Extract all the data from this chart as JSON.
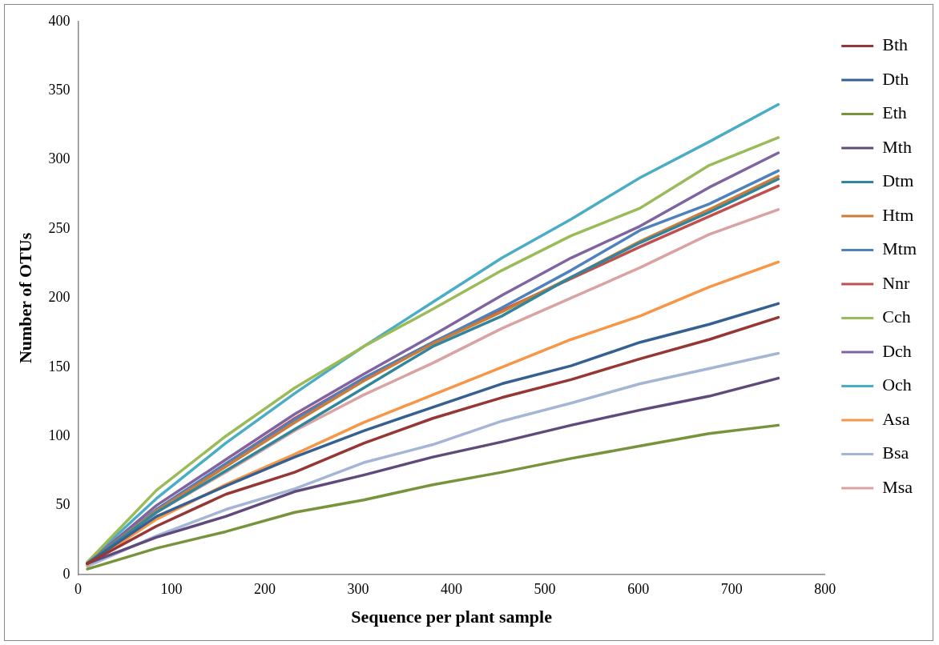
{
  "chart_data": {
    "type": "line",
    "xlabel": "Sequence per plant sample",
    "ylabel": "Number of OTUs",
    "x": [
      10,
      84,
      158,
      232,
      306,
      380,
      454,
      528,
      602,
      676,
      750
    ],
    "xlim": [
      0,
      800
    ],
    "xticks": [
      0,
      100,
      200,
      300,
      400,
      500,
      600,
      700,
      800
    ],
    "ylim": [
      0,
      400
    ],
    "yticks": [
      0,
      50,
      100,
      150,
      200,
      250,
      300,
      350,
      400
    ],
    "grid": false,
    "legend": "right",
    "marker": "none",
    "line_style": "solid",
    "series": [
      {
        "name": "Bth",
        "color": "#953735",
        "values": [
          8,
          35,
          58,
          74,
          95,
          113,
          128,
          141,
          156,
          170,
          186
        ]
      },
      {
        "name": "Dth",
        "color": "#376092",
        "values": [
          8,
          42,
          64,
          85,
          104,
          121,
          138,
          151,
          168,
          181,
          196
        ]
      },
      {
        "name": "Eth",
        "color": "#77933c",
        "values": [
          4,
          19,
          31,
          45,
          54,
          65,
          74,
          84,
          93,
          102,
          108
        ]
      },
      {
        "name": "Mth",
        "color": "#604a7b",
        "values": [
          8,
          27,
          42,
          60,
          72,
          85,
          96,
          108,
          119,
          129,
          142
        ]
      },
      {
        "name": "Dtm",
        "color": "#31859c",
        "values": [
          8,
          45,
          75,
          105,
          135,
          165,
          187,
          215,
          240,
          262,
          286
        ]
      },
      {
        "name": "Htm",
        "color": "#cd7b38",
        "values": [
          8,
          46,
          78,
          110,
          140,
          167,
          190,
          215,
          241,
          264,
          288
        ]
      },
      {
        "name": "Mtm",
        "color": "#4f81bd",
        "values": [
          8,
          47,
          80,
          112,
          142,
          168,
          193,
          220,
          249,
          268,
          292
        ]
      },
      {
        "name": "Nnr",
        "color": "#c0504d",
        "values": [
          8,
          47,
          80,
          113,
          142,
          168,
          191,
          214,
          237,
          259,
          281
        ]
      },
      {
        "name": "Cch",
        "color": "#9bbb59",
        "values": [
          9,
          61,
          100,
          135,
          165,
          192,
          220,
          245,
          265,
          296,
          316
        ]
      },
      {
        "name": "Dch",
        "color": "#8064a2",
        "values": [
          8,
          50,
          83,
          116,
          145,
          173,
          202,
          229,
          252,
          280,
          305
        ]
      },
      {
        "name": "Och",
        "color": "#4bacc6",
        "values": [
          9,
          55,
          95,
          131,
          165,
          197,
          229,
          257,
          287,
          313,
          340
        ]
      },
      {
        "name": "Asa",
        "color": "#f79646",
        "values": [
          7,
          40,
          65,
          87,
          110,
          130,
          150,
          170,
          187,
          208,
          226
        ]
      },
      {
        "name": "Bsa",
        "color": "#a5b5d5",
        "values": [
          6,
          28,
          47,
          62,
          81,
          94,
          111,
          124,
          138,
          149,
          160
        ]
      },
      {
        "name": "Msa",
        "color": "#d9a3a3",
        "values": [
          7,
          45,
          74,
          104,
          130,
          153,
          178,
          200,
          222,
          246,
          264
        ]
      }
    ]
  }
}
